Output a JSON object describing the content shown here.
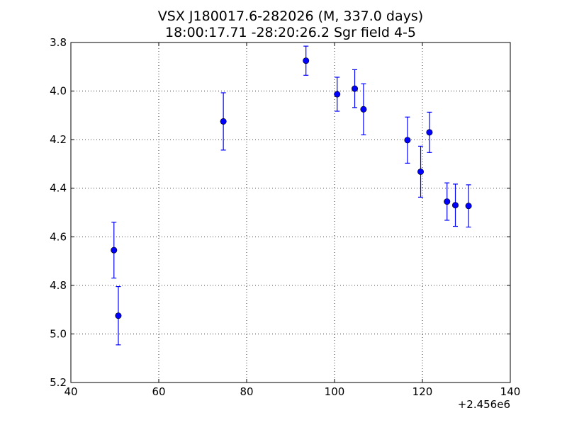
{
  "chart_data": {
    "type": "scatter",
    "title": "VSX J180017.6-282026 (M, 337.0 days)",
    "subtitle": "18:00:17.71 -28:20:26.2 Sgr field 4-5",
    "xlabel": "",
    "ylabel": "",
    "x_offset_label": "+2.456e6",
    "xlim": [
      40,
      140
    ],
    "ylim": [
      3.8,
      5.2
    ],
    "y_inverted": true,
    "grid": true,
    "x_ticks": [
      "40",
      "60",
      "80",
      "100",
      "120",
      "140"
    ],
    "y_ticks": [
      "3.8",
      "4.0",
      "4.2",
      "4.4",
      "4.6",
      "4.8",
      "5.0",
      "5.2"
    ],
    "marker_color": "#0000ff",
    "points": [
      {
        "x": 49.8,
        "y": 4.655,
        "err": 0.115
      },
      {
        "x": 50.8,
        "y": 4.925,
        "err": 0.12
      },
      {
        "x": 74.7,
        "y": 4.125,
        "err": 0.118
      },
      {
        "x": 93.5,
        "y": 3.875,
        "err": 0.06
      },
      {
        "x": 100.6,
        "y": 4.013,
        "err": 0.07
      },
      {
        "x": 104.6,
        "y": 3.99,
        "err": 0.078
      },
      {
        "x": 106.6,
        "y": 4.075,
        "err": 0.105
      },
      {
        "x": 116.6,
        "y": 4.202,
        "err": 0.095
      },
      {
        "x": 119.6,
        "y": 4.332,
        "err": 0.105
      },
      {
        "x": 121.6,
        "y": 4.17,
        "err": 0.083
      },
      {
        "x": 125.6,
        "y": 4.455,
        "err": 0.077
      },
      {
        "x": 127.5,
        "y": 4.47,
        "err": 0.087
      },
      {
        "x": 130.5,
        "y": 4.473,
        "err": 0.087
      }
    ]
  }
}
